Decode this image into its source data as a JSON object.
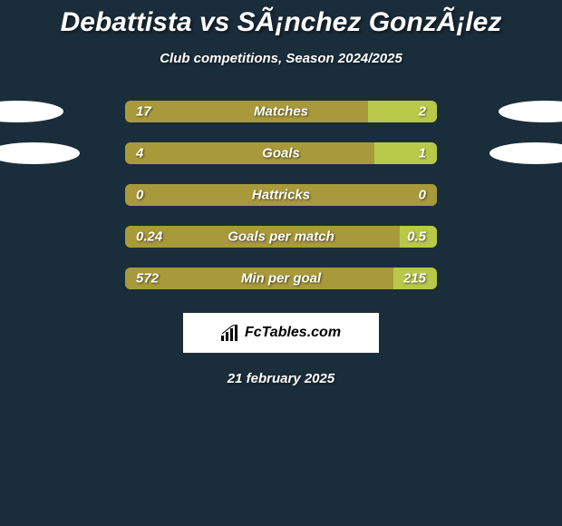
{
  "title": "Debattista vs SÃ¡nchez GonzÃ¡lez",
  "subtitle": "Club competitions, Season 2024/2025",
  "date": "21 february 2025",
  "logo_text": "FcTables.com",
  "colors": {
    "background": "#1a2d3a",
    "left_bar": "#a89a3a",
    "right_bar": "#b8c94a",
    "oval_left": "#ffffff",
    "oval_right": "#ffffff",
    "text": "#ffffff",
    "logo_bg": "#ffffff",
    "logo_text": "#000000"
  },
  "rows": [
    {
      "label": "Matches",
      "left_value": "17",
      "right_value": "2",
      "left_pct": 78,
      "right_pct": 22,
      "show_oval_left": true,
      "show_oval_right": true,
      "oval_left_offset": -50,
      "oval_right_offset": -50
    },
    {
      "label": "Goals",
      "left_value": "4",
      "right_value": "1",
      "left_pct": 80,
      "right_pct": 20,
      "show_oval_left": true,
      "show_oval_right": true,
      "oval_left_offset": -32,
      "oval_right_offset": -40
    },
    {
      "label": "Hattricks",
      "left_value": "0",
      "right_value": "0",
      "left_pct": 100,
      "right_pct": 0,
      "show_oval_left": false,
      "show_oval_right": false
    },
    {
      "label": "Goals per match",
      "left_value": "0.24",
      "right_value": "0.5",
      "left_pct": 88,
      "right_pct": 12,
      "show_oval_left": false,
      "show_oval_right": false
    },
    {
      "label": "Min per goal",
      "left_value": "572",
      "right_value": "215",
      "left_pct": 86,
      "right_pct": 14,
      "show_oval_left": false,
      "show_oval_right": false
    }
  ]
}
